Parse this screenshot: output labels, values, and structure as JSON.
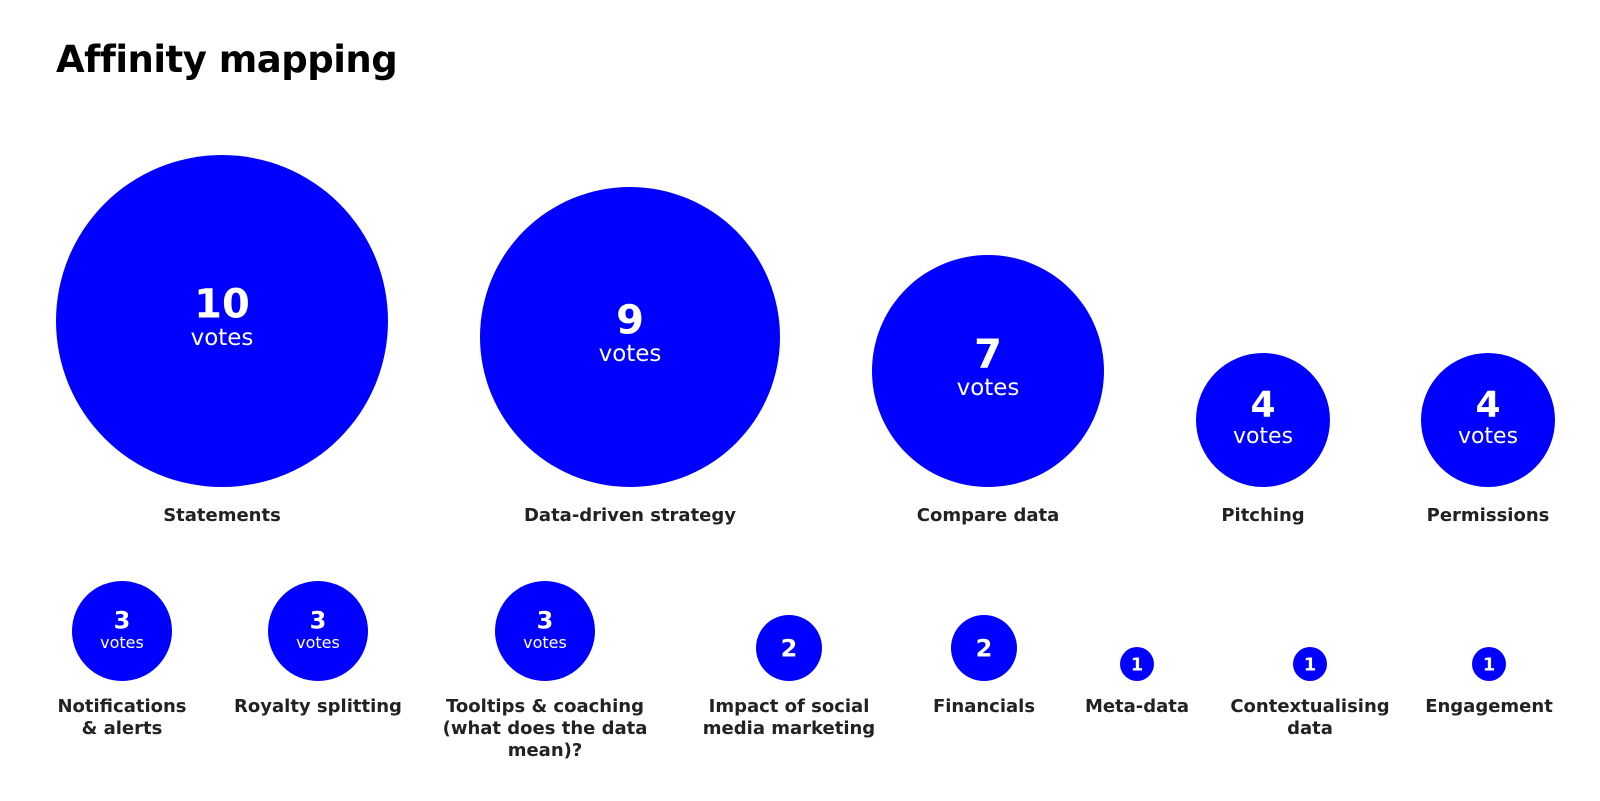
{
  "page": {
    "title": "Affinity mapping"
  },
  "chart_data": {
    "type": "bubble",
    "title": "Affinity mapping",
    "unit_label": "votes",
    "color": "#0000FF",
    "text_color": "#FFFFFF",
    "items": [
      {
        "label": "Statements",
        "value": 10,
        "show_unit": true
      },
      {
        "label": "Data-driven strategy",
        "value": 9,
        "show_unit": true
      },
      {
        "label": "Compare data",
        "value": 7,
        "show_unit": true
      },
      {
        "label": "Pitching",
        "value": 4,
        "show_unit": true
      },
      {
        "label": "Permissions",
        "value": 4,
        "show_unit": true
      },
      {
        "label": "Notifications\n& alerts",
        "value": 3,
        "show_unit": true
      },
      {
        "label": "Royalty splitting",
        "value": 3,
        "show_unit": true
      },
      {
        "label": "Tooltips & coaching\n(what does the data\nmean)?",
        "value": 3,
        "show_unit": true
      },
      {
        "label": "Impact of social\nmedia marketing",
        "value": 2,
        "show_unit": false
      },
      {
        "label": "Financials",
        "value": 2,
        "show_unit": false
      },
      {
        "label": "Meta-data",
        "value": 1,
        "show_unit": false
      },
      {
        "label": "Contextualising\ndata",
        "value": 1,
        "show_unit": false
      },
      {
        "label": "Engagement",
        "value": 1,
        "show_unit": false
      }
    ]
  }
}
